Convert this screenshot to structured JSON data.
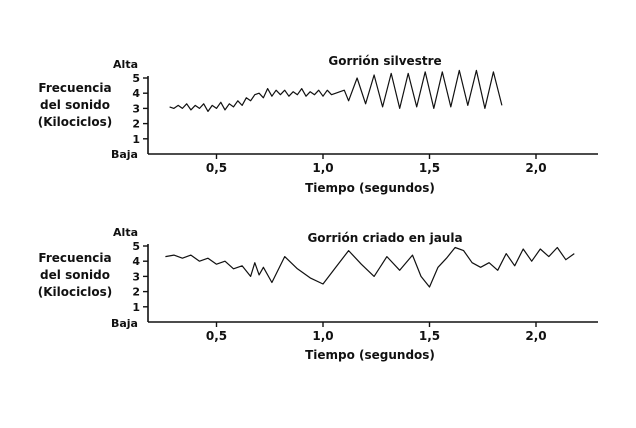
{
  "chart_data": [
    {
      "type": "line",
      "title": "Gorrión silvestre",
      "xlabel": "Tiempo (segundos)",
      "ylabel": "Frecuencia del sonido (Kilociclos)",
      "ylabel_lines": [
        "Frecuencia",
        "del sonido",
        "(Kilociclos)"
      ],
      "y_top_label": "Alta",
      "y_bottom_label": "Baja",
      "xlim": [
        0,
        2.5
      ],
      "ylim": [
        0,
        5
      ],
      "xticks": [
        0.5,
        1.0,
        1.5,
        2.0
      ],
      "xtick_labels": [
        "0,5",
        "1,0",
        "1,5",
        "2,0"
      ],
      "yticks": [
        1,
        2,
        3,
        4,
        5
      ],
      "ytick_labels": [
        "1",
        "2",
        "3",
        "4",
        "5"
      ],
      "series": [
        {
          "x": [
            0.28,
            0.3,
            0.32,
            0.34,
            0.36,
            0.38,
            0.4,
            0.42,
            0.44,
            0.46,
            0.48,
            0.5,
            0.52,
            0.54,
            0.56,
            0.58,
            0.6,
            0.62,
            0.64,
            0.66,
            0.68,
            0.7,
            0.72,
            0.74,
            0.76,
            0.78,
            0.8,
            0.82,
            0.84,
            0.86,
            0.88,
            0.9,
            0.92,
            0.94,
            0.96,
            0.98,
            1.0,
            1.02,
            1.04,
            1.06,
            1.08,
            1.1,
            1.12,
            1.16,
            1.2,
            1.24,
            1.28,
            1.32,
            1.36,
            1.4,
            1.44,
            1.48,
            1.52,
            1.56,
            1.6,
            1.64,
            1.68,
            1.72,
            1.76,
            1.8,
            1.84
          ],
          "y": [
            3.1,
            3.0,
            3.2,
            3.0,
            3.3,
            2.9,
            3.2,
            3.0,
            3.3,
            2.8,
            3.2,
            3.0,
            3.4,
            2.9,
            3.3,
            3.1,
            3.5,
            3.2,
            3.7,
            3.5,
            3.9,
            4.0,
            3.7,
            4.3,
            3.8,
            4.2,
            3.9,
            4.2,
            3.8,
            4.1,
            3.9,
            4.3,
            3.8,
            4.1,
            3.9,
            4.2,
            3.8,
            4.2,
            3.9,
            4.0,
            4.1,
            4.2,
            3.5,
            5.0,
            3.3,
            5.2,
            3.1,
            5.3,
            3.0,
            5.3,
            3.1,
            5.4,
            3.0,
            5.4,
            3.1,
            5.5,
            3.2,
            5.5,
            3.0,
            5.4,
            3.2
          ]
        }
      ]
    },
    {
      "type": "line",
      "title": "Gorrión criado en jaula",
      "xlabel": "Tiempo (segundos)",
      "ylabel": "Frecuencia del sonido (Kilociclos)",
      "ylabel_lines": [
        "Frecuencia",
        "del sonido",
        "(Kilociclos)"
      ],
      "y_top_label": "Alta",
      "y_bottom_label": "Baja",
      "xlim": [
        0,
        2.5
      ],
      "ylim": [
        0,
        5
      ],
      "xticks": [
        0.5,
        1.0,
        1.5,
        2.0
      ],
      "xtick_labels": [
        "0,5",
        "1,0",
        "1,5",
        "2,0"
      ],
      "yticks": [
        1,
        2,
        3,
        4,
        5
      ],
      "ytick_labels": [
        "1",
        "2",
        "3",
        "4",
        "5"
      ],
      "series": [
        {
          "x": [
            0.26,
            0.3,
            0.34,
            0.38,
            0.42,
            0.46,
            0.5,
            0.54,
            0.58,
            0.62,
            0.66,
            0.68,
            0.7,
            0.72,
            0.76,
            0.82,
            0.88,
            0.94,
            1.0,
            1.06,
            1.12,
            1.18,
            1.24,
            1.3,
            1.36,
            1.42,
            1.46,
            1.5,
            1.54,
            1.58,
            1.62,
            1.66,
            1.7,
            1.74,
            1.78,
            1.82,
            1.86,
            1.9,
            1.94,
            1.98,
            2.02,
            2.06,
            2.1,
            2.14,
            2.18
          ],
          "y": [
            4.3,
            4.4,
            4.2,
            4.4,
            4.0,
            4.2,
            3.8,
            4.0,
            3.5,
            3.7,
            3.0,
            3.9,
            3.1,
            3.6,
            2.6,
            4.3,
            3.5,
            2.9,
            2.5,
            3.6,
            4.7,
            3.8,
            3.0,
            4.3,
            3.4,
            4.4,
            3.0,
            2.3,
            3.6,
            4.2,
            4.9,
            4.7,
            3.9,
            3.6,
            3.9,
            3.4,
            4.5,
            3.7,
            4.8,
            4.0,
            4.8,
            4.3,
            4.9,
            4.1,
            4.5
          ]
        }
      ]
    }
  ]
}
